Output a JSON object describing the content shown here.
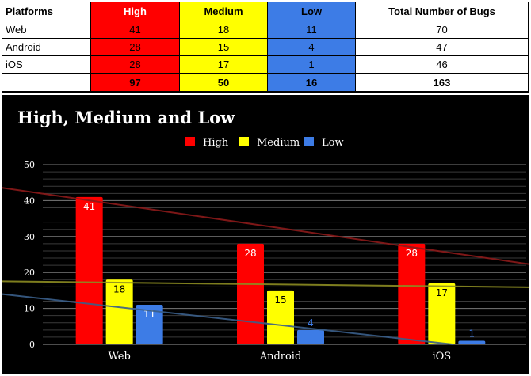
{
  "table": {
    "headers": [
      "Platforms",
      "High",
      "Medium",
      "Low",
      "Total Number of Bugs"
    ],
    "rows": [
      {
        "platform": "Web",
        "high": "41",
        "medium": "18",
        "low": "11",
        "total": "70"
      },
      {
        "platform": "Android",
        "high": "28",
        "medium": "15",
        "low": "4",
        "total": "47"
      },
      {
        "platform": "iOS",
        "high": "28",
        "medium": "17",
        "low": "1",
        "total": "46"
      }
    ],
    "totals": {
      "platform": "",
      "high": "97",
      "medium": "50",
      "low": "16",
      "total": "163"
    }
  },
  "colors": {
    "high": "#ff0000",
    "medium": "#ffff00",
    "low": "#3d7ce6",
    "background": "#000000"
  },
  "chart_data": {
    "type": "bar",
    "title": "High, Medium and Low",
    "categories": [
      "Web",
      "Android",
      "iOS"
    ],
    "series": [
      {
        "name": "High",
        "values": [
          41,
          28,
          28
        ],
        "color": "#ff0000"
      },
      {
        "name": "Medium",
        "values": [
          18,
          15,
          17
        ],
        "color": "#ffff00"
      },
      {
        "name": "Low",
        "values": [
          11,
          4,
          1
        ],
        "color": "#3d7ce6"
      }
    ],
    "trendlines": true,
    "ylim": [
      0,
      50
    ],
    "yticks": [
      0,
      10,
      20,
      30,
      40,
      50
    ],
    "data_labels": true,
    "legend": "top-center",
    "grid": true
  }
}
